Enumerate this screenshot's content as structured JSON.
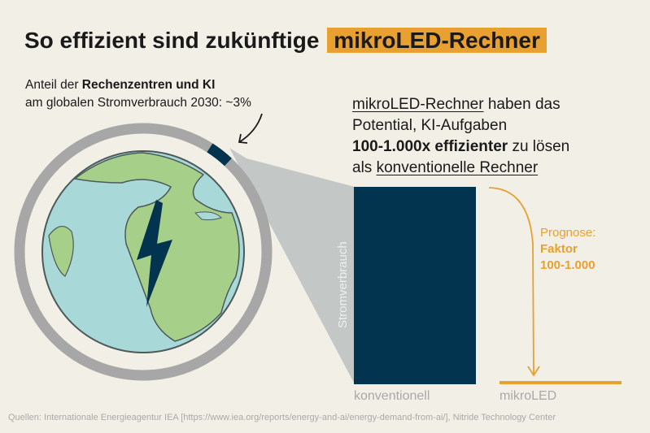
{
  "title": {
    "text": "So effizient sind zukünftige",
    "highlight": "mikroLED-Rechner"
  },
  "share": {
    "line1_pre": "Anteil der ",
    "line1_bold": "Rechenzentren und KI",
    "line2": "am globalen Stromverbrauch 2030: ~3%"
  },
  "claim": {
    "l1_ul": "mikroLED-Rechner",
    "l1_rest": " haben das",
    "l2": "Potential, KI-Aufgaben",
    "l3_bold": "100-1.000x effizienter",
    "l3_rest": " zu lösen",
    "l4_pre": "als ",
    "l4_ul": "konventionelle Rechner"
  },
  "prognosis": {
    "label": "Prognose:",
    "factor_label": "Faktor",
    "factor_value": "100-1.000"
  },
  "colors": {
    "bg": "#f2efe6",
    "bar": "#03344f",
    "accent": "#e8a030",
    "ring": "#a7a7a7",
    "ocean": "#a9d8d8",
    "land": "#a6cf8a"
  },
  "chart_data": {
    "type": "bar",
    "title": "So effizient sind zukünftige mikroLED-Rechner",
    "ylabel": "Stromverbrauch",
    "xlabel": "",
    "categories": [
      "konventionell",
      "mikroLED"
    ],
    "values": [
      100,
      1.5
    ],
    "ylim": [
      0,
      100
    ],
    "grid": false,
    "annotation": "Prognose: Faktor 100-1.000",
    "share_percent": 3
  },
  "source": "Quellen: Internationale Energieagentur IEA [https://www.iea.org/reports/energy-and-ai/energy-demand-from-ai/], Nitride Technology Center"
}
